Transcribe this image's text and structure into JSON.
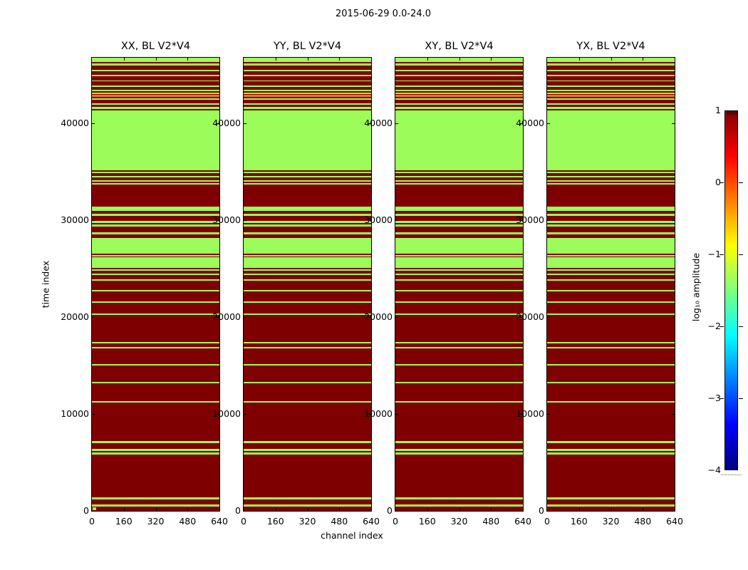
{
  "chart_data": {
    "type": "heatmap",
    "title": "2015-06-29 0.0-24.0",
    "xlabel": "channel index",
    "ylabel": "time index",
    "panels": [
      {
        "title": "XX, BL V2*V4",
        "id": "xx"
      },
      {
        "title": "YY, BL V2*V4",
        "id": "yy"
      },
      {
        "title": "XY, BL V2*V4",
        "id": "xy"
      },
      {
        "title": "YX, BL V2*V4",
        "id": "yx"
      }
    ],
    "xlim": [
      0,
      640
    ],
    "ylim": [
      0,
      46780
    ],
    "x_ticks": [
      0,
      160,
      320,
      480,
      640
    ],
    "y_ticks": [
      0,
      10000,
      20000,
      30000,
      40000
    ],
    "grid": false,
    "legend_position": "none",
    "colorbar": {
      "label": "log₁₀ amplitude",
      "lim": [
        -4,
        1
      ],
      "ticks": [
        1,
        0,
        -1,
        -2,
        -3,
        -4
      ],
      "tick_labels": [
        "1",
        "0",
        "−1",
        "−2",
        "−3",
        "−4"
      ],
      "colormap": "jet",
      "gradient_top_to_bottom": [
        {
          "pos": 0.0,
          "hex": "#800000"
        },
        {
          "pos": 0.125,
          "hex": "#FF0000"
        },
        {
          "pos": 0.375,
          "hex": "#FFFF00"
        },
        {
          "pos": 0.625,
          "hex": "#00FFFF"
        },
        {
          "pos": 0.875,
          "hex": "#0000FF"
        },
        {
          "pos": 1.0,
          "hex": "#000080"
        }
      ]
    },
    "value_colors": {
      "r": {
        "hex": "#7F0000",
        "approx_log10_amplitude": 1.0
      },
      "g": {
        "hex": "#9BFC5A",
        "approx_log10_amplitude": -1.4
      },
      "o": {
        "hex": "#E87818",
        "approx_log10_amplitude": -0.2
      },
      "y": {
        "hex": "#C8E420",
        "approx_log10_amplitude": -0.9
      }
    },
    "stripes_time_ranges": [
      [
        46780,
        46340,
        "g"
      ],
      [
        46340,
        46190,
        "r"
      ],
      [
        46190,
        45970,
        "g"
      ],
      [
        45970,
        45530,
        "r"
      ],
      [
        45530,
        45380,
        "g"
      ],
      [
        45380,
        45010,
        "r"
      ],
      [
        45010,
        44860,
        "g"
      ],
      [
        44860,
        44430,
        "r"
      ],
      [
        44430,
        44320,
        "g"
      ],
      [
        44320,
        43900,
        "r"
      ],
      [
        43900,
        43790,
        "g"
      ],
      [
        43790,
        43460,
        "r"
      ],
      [
        43460,
        43310,
        "g"
      ],
      [
        43310,
        43160,
        "r"
      ],
      [
        43160,
        43060,
        "y"
      ],
      [
        43060,
        42920,
        "r"
      ],
      [
        42920,
        42700,
        "o"
      ],
      [
        42700,
        42560,
        "r"
      ],
      [
        42560,
        42410,
        "g"
      ],
      [
        42410,
        42040,
        "r"
      ],
      [
        42040,
        41890,
        "g"
      ],
      [
        41890,
        41670,
        "r"
      ],
      [
        41670,
        41520,
        "g"
      ],
      [
        41520,
        41370,
        "r"
      ],
      [
        41370,
        41150,
        "g"
      ],
      [
        41150,
        41080,
        "r"
      ],
      [
        41080,
        35160,
        "g"
      ],
      [
        35160,
        35010,
        "r"
      ],
      [
        35010,
        34860,
        "g"
      ],
      [
        34860,
        34560,
        "r"
      ],
      [
        34560,
        34410,
        "g"
      ],
      [
        34410,
        34110,
        "r"
      ],
      [
        34110,
        33960,
        "g"
      ],
      [
        33960,
        33810,
        "r"
      ],
      [
        33810,
        33660,
        "g"
      ],
      [
        33660,
        31380,
        "r"
      ],
      [
        31380,
        30930,
        "g"
      ],
      [
        30930,
        30680,
        "r"
      ],
      [
        30680,
        30430,
        "g"
      ],
      [
        30430,
        29950,
        "r"
      ],
      [
        29950,
        29750,
        "g"
      ],
      [
        29750,
        29560,
        "r"
      ],
      [
        29560,
        29360,
        "g"
      ],
      [
        29360,
        28730,
        "r"
      ],
      [
        28730,
        28530,
        "g"
      ],
      [
        28530,
        28180,
        "r"
      ],
      [
        28180,
        26520,
        "g"
      ],
      [
        26520,
        26400,
        "r"
      ],
      [
        26400,
        26290,
        "g"
      ],
      [
        26290,
        26160,
        "r"
      ],
      [
        26160,
        25060,
        "g"
      ],
      [
        25060,
        24910,
        "r"
      ],
      [
        24910,
        24760,
        "g"
      ],
      [
        24760,
        24470,
        "r"
      ],
      [
        24470,
        24320,
        "g"
      ],
      [
        24320,
        23890,
        "r"
      ],
      [
        23890,
        23740,
        "g"
      ],
      [
        23740,
        22810,
        "r"
      ],
      [
        22810,
        22660,
        "g"
      ],
      [
        22660,
        21600,
        "r"
      ],
      [
        21600,
        21450,
        "g"
      ],
      [
        21450,
        20380,
        "r"
      ],
      [
        20380,
        20230,
        "g"
      ],
      [
        20230,
        17440,
        "r"
      ],
      [
        17440,
        17290,
        "g"
      ],
      [
        17290,
        16930,
        "r"
      ],
      [
        16930,
        16780,
        "g"
      ],
      [
        16780,
        15180,
        "r"
      ],
      [
        15180,
        15030,
        "g"
      ],
      [
        15030,
        13340,
        "r"
      ],
      [
        13340,
        13190,
        "g"
      ],
      [
        13190,
        11330,
        "r"
      ],
      [
        11330,
        11150,
        "g"
      ],
      [
        11150,
        7190,
        "r"
      ],
      [
        7190,
        7010,
        "g"
      ],
      [
        7010,
        6380,
        "r"
      ],
      [
        6380,
        6200,
        "g"
      ],
      [
        6200,
        6020,
        "r"
      ],
      [
        6020,
        5830,
        "g"
      ],
      [
        5830,
        1370,
        "r"
      ],
      [
        1370,
        1180,
        "g"
      ],
      [
        1180,
        630,
        "r"
      ],
      [
        630,
        450,
        "g"
      ],
      [
        450,
        0,
        "r"
      ]
    ],
    "origin_marker": {
      "panel": "XX, BL V2*V4",
      "channel_range": [
        0,
        18
      ],
      "time_range": [
        0,
        380
      ],
      "color_key": "g"
    }
  }
}
